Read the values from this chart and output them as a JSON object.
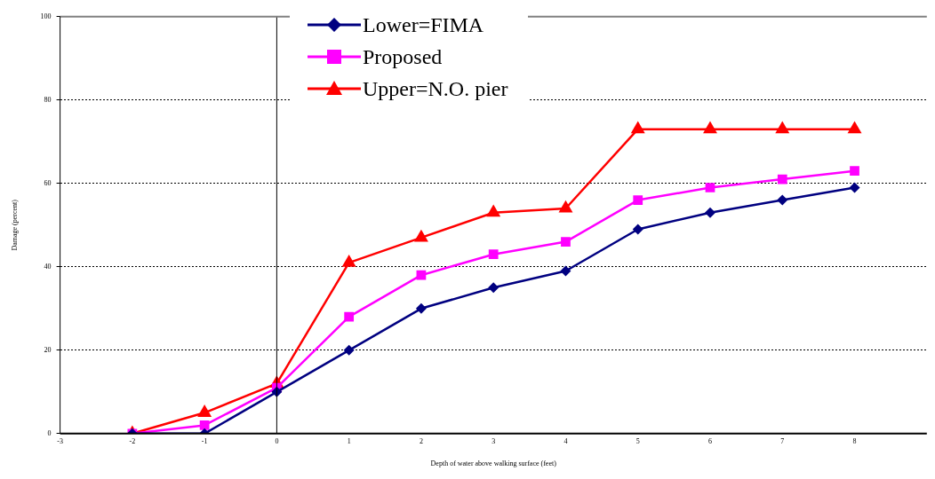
{
  "chart_data": {
    "type": "line",
    "xlabel": "Depth of water above walking surface (feet)",
    "ylabel": "Damage (percent)",
    "x": [
      -2,
      -1,
      0,
      1,
      2,
      3,
      4,
      5,
      6,
      7,
      8
    ],
    "series": [
      {
        "name": "Lower=FIMA",
        "color": "#000080",
        "marker": "diamond",
        "values": [
          0,
          0,
          10,
          20,
          30,
          35,
          39,
          49,
          53,
          56,
          59
        ]
      },
      {
        "name": "Proposed",
        "color": "#ff00ff",
        "marker": "square",
        "values": [
          0,
          2,
          11,
          28,
          38,
          43,
          46,
          56,
          59,
          61,
          63
        ]
      },
      {
        "name": "Upper=N.O. pier",
        "color": "#ff0000",
        "marker": "triangle",
        "values": [
          0,
          5,
          12,
          41,
          47,
          53,
          54,
          73,
          73,
          73,
          73
        ]
      }
    ],
    "xlim": [
      -3,
      9
    ],
    "xticks": [
      -3,
      -2,
      -1,
      0,
      1,
      2,
      3,
      4,
      5,
      6,
      7,
      8
    ],
    "ylim": [
      0,
      100
    ],
    "yticks": [
      0,
      20,
      40,
      60,
      80,
      100
    ],
    "ref_lines": [
      {
        "axis": "x",
        "value": 0,
        "color": "#000000"
      }
    ],
    "grid": "y",
    "legend": "top",
    "line_style": "solid"
  }
}
